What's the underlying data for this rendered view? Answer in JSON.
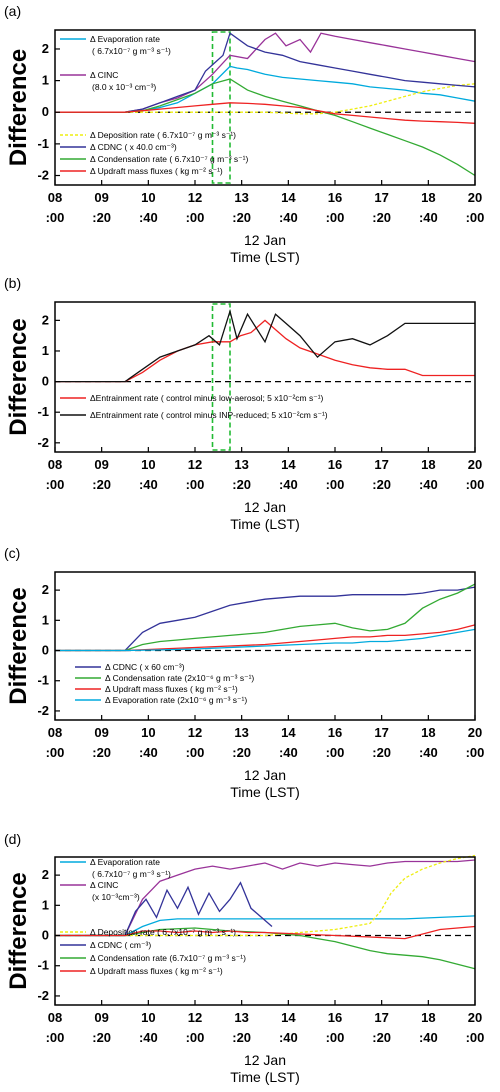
{
  "x_ticks": [
    "08\n:00",
    "09\n:20",
    "10\n:40",
    "12\n:00",
    "13\n:20",
    "14\n:40",
    "16\n:00",
    "17\n:20",
    "18\n:40",
    "20\n:00"
  ],
  "y_ticks": [
    "2",
    "1",
    "0",
    "-1",
    "-2"
  ],
  "chart_data": [
    {
      "type": "line",
      "panel_label": "(a)",
      "ylabel": "Difference",
      "xlabel": [
        "12 Jan",
        "Time (LST)"
      ],
      "xlim": [
        8,
        20
      ],
      "ylim": [
        -2.3,
        2.6
      ],
      "highlight": [
        12.5,
        13.0
      ],
      "series": [
        {
          "name": "Δ Evaporation rate",
          "sub": "( 6.7x10⁻⁷ g m⁻³ s⁻¹)",
          "color": "#00aadd",
          "x": [
            8,
            10.0,
            10.5,
            11,
            11.5,
            12,
            12.5,
            13,
            13.2,
            13.5,
            14,
            14.5,
            15,
            15.5,
            16,
            16.5,
            17,
            17.5,
            18,
            18.5,
            19,
            19.5,
            20
          ],
          "y": [
            0,
            0,
            0.05,
            0.15,
            0.3,
            0.6,
            0.9,
            1.45,
            1.4,
            1.35,
            1.2,
            1.1,
            1.05,
            1.0,
            0.95,
            0.9,
            0.8,
            0.75,
            0.7,
            0.6,
            0.55,
            0.45,
            0.35
          ]
        },
        {
          "name": "Δ CINC",
          "sub": "(8.0 x 10⁻³ cm⁻³)",
          "color": "#993399",
          "x": [
            8,
            10.0,
            10.5,
            11,
            11.5,
            12,
            12.5,
            13,
            13.5,
            14,
            14.3,
            14.6,
            15,
            15.3,
            15.6,
            16,
            16.5,
            17,
            17.5,
            18,
            18.5,
            19,
            19.5,
            20
          ],
          "y": [
            0,
            0,
            0.1,
            0.3,
            0.45,
            0.7,
            1.2,
            1.8,
            1.7,
            2.3,
            2.5,
            2.1,
            2.3,
            1.9,
            2.5,
            2.4,
            2.3,
            2.2,
            2.1,
            2.0,
            1.9,
            1.8,
            1.7,
            1.6
          ]
        },
        {
          "name": "Δ Deposition rate",
          "sub": "( 6.7x10⁻⁷ g m⁻³ s⁻¹)",
          "color": "#eeee11",
          "dash": "3,2",
          "x": [
            8,
            10.0,
            11,
            12,
            13,
            14,
            15,
            15.5,
            16,
            16.5,
            17,
            17.5,
            18,
            18.5,
            19,
            19.5,
            20
          ],
          "y": [
            0,
            0,
            0,
            0,
            0,
            0,
            -0.05,
            -0.05,
            0.0,
            0.1,
            0.2,
            0.35,
            0.5,
            0.65,
            0.75,
            0.85,
            0.9
          ]
        },
        {
          "name": "Δ CDNC",
          "sub": "( x 40.0 cm⁻³)",
          "color": "#333399",
          "x": [
            8,
            10.0,
            10.5,
            11,
            11.5,
            12,
            12.3,
            12.6,
            12.8,
            13,
            13.5,
            14,
            14.5,
            15,
            15.5,
            16,
            16.5,
            17,
            17.5,
            18,
            18.5,
            19,
            19.5,
            20
          ],
          "y": [
            0,
            0,
            0.1,
            0.3,
            0.5,
            0.7,
            1.3,
            1.6,
            1.8,
            2.5,
            2.1,
            1.9,
            1.8,
            1.6,
            1.5,
            1.4,
            1.3,
            1.2,
            1.1,
            1.0,
            0.95,
            0.9,
            0.85,
            0.8
          ]
        },
        {
          "name": "Δ Condensation rate",
          "sub": "( 6.7x10⁻⁷ g m⁻³ s⁻¹)",
          "color": "#33aa33",
          "x": [
            8,
            10.0,
            10.5,
            11,
            11.5,
            12,
            12.5,
            13,
            13.5,
            14,
            14.5,
            15,
            15.5,
            16,
            16.5,
            17,
            17.5,
            18,
            18.5,
            19,
            19.5,
            20
          ],
          "y": [
            0,
            0,
            0.05,
            0.2,
            0.4,
            0.6,
            0.9,
            1.05,
            0.7,
            0.5,
            0.35,
            0.2,
            0.05,
            -0.1,
            -0.3,
            -0.5,
            -0.7,
            -0.9,
            -1.1,
            -1.35,
            -1.65,
            -2.0
          ]
        },
        {
          "name": "Δ Updraft mass fluxes",
          "sub": "( kg m⁻² s⁻¹)",
          "color": "#ee2222",
          "x": [
            8,
            10.0,
            10.5,
            11,
            11.5,
            12,
            12.5,
            13,
            13.5,
            14,
            14.5,
            15,
            15.5,
            16,
            16.5,
            17,
            17.5,
            18,
            18.5,
            19,
            19.5,
            20
          ],
          "y": [
            0,
            0,
            0.05,
            0.1,
            0.15,
            0.2,
            0.25,
            0.3,
            0.28,
            0.25,
            0.2,
            0.15,
            0.05,
            -0.05,
            -0.1,
            -0.15,
            -0.2,
            -0.25,
            -0.28,
            -0.3,
            -0.32,
            -0.35
          ]
        }
      ]
    },
    {
      "type": "line",
      "panel_label": "(b)",
      "ylabel": "Difference",
      "xlabel": [
        "12 Jan",
        "Time (LST)"
      ],
      "xlim": [
        8,
        20
      ],
      "ylim": [
        -2.3,
        2.6
      ],
      "highlight": [
        12.5,
        13.0
      ],
      "series": [
        {
          "name": "ΔEntrainment rate",
          "sub": "( control minus low-aerosol; 5 x10⁻²cm s⁻¹)",
          "color": "#ee2222",
          "x": [
            8,
            10.0,
            10.5,
            11,
            11.5,
            12,
            12.5,
            13,
            13.3,
            13.6,
            14,
            14.3,
            14.6,
            15,
            15.5,
            16,
            16.5,
            17,
            17.5,
            18,
            18.5,
            19,
            19.5,
            20
          ],
          "y": [
            0,
            0,
            0.3,
            0.7,
            1.0,
            1.2,
            1.3,
            1.3,
            1.5,
            1.6,
            2.0,
            1.7,
            1.4,
            1.1,
            0.9,
            0.7,
            0.55,
            0.45,
            0.4,
            0.4,
            0.2,
            0.2,
            0.2,
            0.2
          ]
        },
        {
          "name": "ΔEntrainment rate",
          "sub": "( control minus INP-reduced; 5 x10⁻²cm s⁻¹)",
          "color": "#111111",
          "x": [
            8,
            10.0,
            10.5,
            11,
            11.5,
            12,
            12.4,
            12.7,
            13,
            13.2,
            13.5,
            14,
            14.3,
            14.6,
            15,
            15.5,
            16,
            16.5,
            17,
            17.5,
            18,
            18.5,
            19,
            19.5,
            20
          ],
          "y": [
            0,
            0,
            0.4,
            0.8,
            1.0,
            1.2,
            1.5,
            1.2,
            2.3,
            1.4,
            2.2,
            1.3,
            2.2,
            1.9,
            1.5,
            0.8,
            1.3,
            1.4,
            1.2,
            1.5,
            1.9,
            1.9,
            1.9,
            1.9,
            1.9
          ]
        }
      ]
    },
    {
      "type": "line",
      "panel_label": "(c)",
      "ylabel": "Difference",
      "xlabel": [
        "12 Jan",
        "Time (LST)"
      ],
      "xlim": [
        8,
        20
      ],
      "ylim": [
        -2.3,
        2.6
      ],
      "series": [
        {
          "name": "Δ CDNC",
          "sub": "( x 60 cm⁻³)",
          "color": "#333399",
          "x": [
            8,
            10.0,
            10.5,
            11,
            11.5,
            12,
            12.5,
            13,
            13.5,
            14,
            14.5,
            15,
            15.5,
            16,
            16.5,
            17,
            17.5,
            18,
            18.5,
            19,
            19.5,
            20
          ],
          "y": [
            0,
            0,
            0.6,
            0.9,
            1.0,
            1.1,
            1.3,
            1.5,
            1.6,
            1.7,
            1.75,
            1.8,
            1.8,
            1.8,
            1.85,
            1.85,
            1.85,
            1.85,
            1.9,
            2.0,
            2.0,
            2.1
          ]
        },
        {
          "name": "Δ Condensation rate",
          "sub": "(2x10⁻⁶ g m⁻³ s⁻¹)",
          "color": "#33aa33",
          "x": [
            8,
            10.0,
            10.5,
            11,
            11.5,
            12,
            12.5,
            13,
            13.5,
            14,
            14.5,
            15,
            15.5,
            16,
            16.5,
            17,
            17.5,
            18,
            18.5,
            19,
            19.5,
            20
          ],
          "y": [
            0,
            0,
            0.2,
            0.3,
            0.35,
            0.4,
            0.45,
            0.5,
            0.55,
            0.6,
            0.7,
            0.8,
            0.85,
            0.9,
            0.75,
            0.65,
            0.7,
            0.9,
            1.4,
            1.7,
            1.9,
            2.2
          ]
        },
        {
          "name": "Δ Updraft mass fluxes",
          "sub": "( kg m⁻² s⁻¹)",
          "color": "#ee2222",
          "x": [
            8,
            10.0,
            11,
            12,
            13,
            14,
            15,
            15.5,
            16,
            16.5,
            17,
            17.5,
            18,
            18.5,
            19,
            19.5,
            20
          ],
          "y": [
            0,
            0,
            0.05,
            0.1,
            0.15,
            0.2,
            0.3,
            0.35,
            0.4,
            0.45,
            0.45,
            0.5,
            0.5,
            0.55,
            0.6,
            0.7,
            0.85
          ]
        },
        {
          "name": "Δ Evaporation rate",
          "sub": "(2x10⁻⁶ g m⁻³ s⁻¹)",
          "color": "#00aadd",
          "x": [
            8,
            10.0,
            11,
            12,
            13,
            14,
            15,
            16,
            16.5,
            17,
            17.5,
            18,
            18.5,
            19,
            19.5,
            20
          ],
          "y": [
            0,
            0,
            0.02,
            0.05,
            0.1,
            0.15,
            0.2,
            0.25,
            0.25,
            0.3,
            0.3,
            0.35,
            0.4,
            0.5,
            0.6,
            0.7
          ]
        }
      ]
    },
    {
      "type": "line",
      "panel_label": "(d)",
      "ylabel": "Difference",
      "xlabel": [
        "12 Jan",
        "Time (LST)"
      ],
      "xlim": [
        8,
        20
      ],
      "ylim": [
        -2.3,
        2.6
      ],
      "series": [
        {
          "name": "Δ Evaporation rate",
          "sub": "( 6.7x10⁻⁷ g m⁻³ s⁻¹)",
          "color": "#00aadd",
          "x": [
            8,
            10.0,
            10.5,
            11,
            11.5,
            12,
            13,
            14,
            15,
            16,
            17,
            18,
            19,
            20
          ],
          "y": [
            0,
            0,
            0.3,
            0.5,
            0.55,
            0.55,
            0.55,
            0.55,
            0.55,
            0.55,
            0.55,
            0.55,
            0.6,
            0.65
          ]
        },
        {
          "name": "Δ CINC",
          "sub": "(x 10⁻³cm⁻³)",
          "color": "#993399",
          "x": [
            8,
            10.0,
            10.5,
            11,
            11.5,
            12,
            12.5,
            13,
            13.5,
            14,
            14.5,
            15,
            15.5,
            16,
            16.5,
            17,
            17.5,
            18,
            18.5,
            19,
            19.5,
            20
          ],
          "y": [
            0,
            0,
            1.2,
            1.8,
            2.0,
            2.2,
            2.3,
            2.2,
            2.3,
            2.4,
            2.2,
            2.4,
            2.3,
            2.4,
            2.35,
            2.3,
            2.4,
            2.45,
            2.45,
            2.45,
            2.45,
            2.5
          ]
        },
        {
          "name": "Δ Deposition rate",
          "sub": "( 6.7x10⁻⁷ g m⁻³ s⁻¹)",
          "color": "#eeee11",
          "dash": "3,2",
          "x": [
            8,
            10.0,
            11,
            12,
            13,
            14,
            15,
            16,
            16.5,
            17,
            17.3,
            17.6,
            18,
            18.5,
            19,
            19.5,
            20
          ],
          "y": [
            0,
            0,
            0,
            0,
            0,
            0,
            0.1,
            0.2,
            0.3,
            0.4,
            0.8,
            1.4,
            1.9,
            2.2,
            2.4,
            2.55,
            2.65
          ]
        },
        {
          "name": "Δ CDNC",
          "sub": "( cm⁻³)",
          "color": "#333399",
          "x": [
            8,
            10.0,
            10.3,
            10.6,
            10.9,
            11.2,
            11.5,
            11.8,
            12.1,
            12.4,
            12.7,
            13.0,
            13.3,
            13.6,
            13.9,
            14.2
          ],
          "y": [
            0,
            0,
            0.8,
            1.2,
            0.6,
            1.5,
            0.9,
            1.6,
            0.7,
            1.4,
            0.8,
            1.2,
            1.75,
            0.9,
            0.6,
            0.3
          ]
        },
        {
          "name": "Δ Condensation rate",
          "sub": "(6.7x10⁻⁷ g m⁻³ s⁻¹)",
          "color": "#33aa33",
          "x": [
            8,
            10.0,
            11,
            12,
            13,
            14,
            15,
            15.5,
            16,
            16.5,
            17,
            17.5,
            18,
            18.5,
            19,
            19.5,
            20
          ],
          "y": [
            0,
            0,
            0.2,
            0.25,
            0.15,
            0.1,
            0.0,
            -0.1,
            -0.2,
            -0.35,
            -0.5,
            -0.6,
            -0.65,
            -0.7,
            -0.8,
            -0.95,
            -1.1
          ]
        },
        {
          "name": "Δ Updraft mass fluxes",
          "sub": "( kg m⁻² s⁻¹)",
          "color": "#ee2222",
          "x": [
            8,
            10.0,
            10.5,
            11,
            11.5,
            12,
            12.5,
            13,
            13.5,
            14,
            15,
            16,
            17,
            18,
            19,
            20
          ],
          "y": [
            0,
            0,
            0.15,
            0.15,
            0.1,
            0.15,
            0.1,
            0.15,
            0.1,
            0.1,
            0.05,
            0.0,
            -0.05,
            -0.1,
            0.2,
            0.3
          ]
        }
      ]
    }
  ]
}
